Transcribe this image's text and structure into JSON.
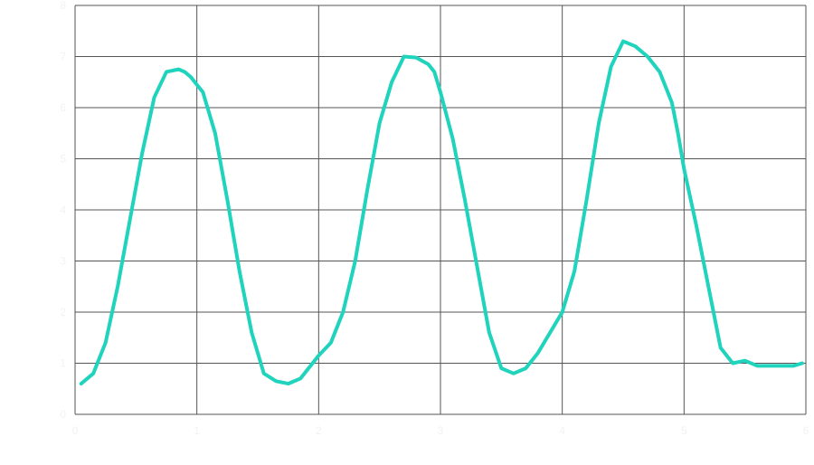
{
  "chart_data": {
    "type": "line",
    "title": "",
    "xlabel": "",
    "ylabel": "",
    "xlim": [
      0,
      6
    ],
    "ylim": [
      0,
      8
    ],
    "grid": true,
    "legend": "none",
    "x_ticks": [
      0,
      1,
      2,
      3,
      4,
      5,
      6
    ],
    "y_ticks": [
      0,
      1,
      2,
      3,
      4,
      5,
      6,
      7,
      8
    ],
    "colors": {
      "line": "#1fd3bd",
      "grid": "#555555",
      "background": "#ffffff"
    },
    "series": [
      {
        "x": [
          0.05,
          0.15,
          0.25,
          0.35,
          0.45,
          0.55,
          0.65,
          0.75,
          0.85,
          0.9,
          0.95,
          1.05,
          1.15,
          1.25,
          1.35,
          1.45,
          1.55,
          1.65,
          1.75,
          1.85,
          1.95,
          2.0,
          2.1,
          2.2,
          2.3,
          2.4,
          2.5,
          2.6,
          2.7,
          2.8,
          2.9,
          2.95,
          3.0,
          3.1,
          3.2,
          3.3,
          3.4,
          3.5,
          3.6,
          3.7,
          3.8,
          3.9,
          4.0,
          4.1,
          4.2,
          4.3,
          4.4,
          4.5,
          4.6,
          4.7,
          4.8,
          4.9,
          4.95,
          5.0,
          5.1,
          5.2,
          5.3,
          5.4,
          5.5,
          5.6,
          5.7,
          5.8,
          5.9,
          5.97
        ],
        "y": [
          0.6,
          0.8,
          1.4,
          2.5,
          3.8,
          5.1,
          6.2,
          6.7,
          6.75,
          6.7,
          6.6,
          6.3,
          5.5,
          4.2,
          2.8,
          1.6,
          0.8,
          0.65,
          0.6,
          0.7,
          1.0,
          1.15,
          1.4,
          2.0,
          3.0,
          4.4,
          5.7,
          6.5,
          7.0,
          6.98,
          6.85,
          6.7,
          6.3,
          5.4,
          4.2,
          2.9,
          1.6,
          0.9,
          0.8,
          0.9,
          1.2,
          1.6,
          2.0,
          2.8,
          4.2,
          5.7,
          6.8,
          7.3,
          7.2,
          7.0,
          6.7,
          6.1,
          5.5,
          4.8,
          3.7,
          2.5,
          1.3,
          1.0,
          1.05,
          0.95,
          0.95,
          0.95,
          0.95,
          1.0
        ]
      }
    ]
  }
}
